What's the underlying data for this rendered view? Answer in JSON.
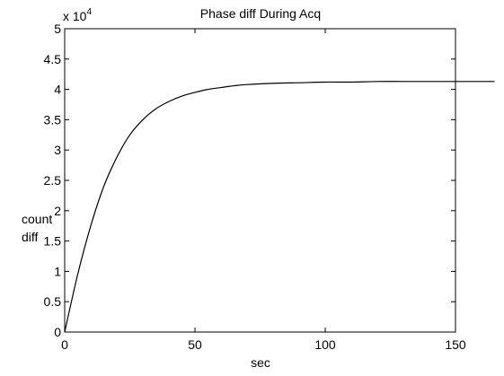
{
  "chart_data": {
    "type": "line",
    "title": "Phase diff During Acq",
    "xlabel": "sec",
    "ylabel_lines": [
      "count",
      "diff"
    ],
    "xlim": [
      0,
      150
    ],
    "ylim": [
      0,
      5
    ],
    "y_scale_prefix": "x 10",
    "y_scale_exponent": "4",
    "x_ticks": [
      0,
      50,
      100,
      150
    ],
    "x_tick_labels": [
      "0",
      "50",
      "100",
      "150"
    ],
    "y_ticks": [
      0,
      0.5,
      1,
      1.5,
      2,
      2.5,
      3,
      3.5,
      4,
      4.5,
      5
    ],
    "y_tick_labels": [
      "0",
      "0.5",
      "1",
      "1.5",
      "2",
      "2.5",
      "3",
      "3.5",
      "4",
      "4.5",
      "5"
    ],
    "grid": false,
    "series": [
      {
        "x": [
          0,
          5,
          10,
          15,
          20,
          25,
          30,
          35,
          40,
          45,
          50,
          55,
          60,
          65,
          70,
          80,
          90,
          100,
          110,
          120,
          130,
          140,
          150,
          165
        ],
        "values": [
          0,
          0.95,
          1.75,
          2.4,
          2.88,
          3.25,
          3.5,
          3.68,
          3.8,
          3.89,
          3.95,
          4.0,
          4.03,
          4.06,
          4.08,
          4.1,
          4.11,
          4.12,
          4.12,
          4.13,
          4.13,
          4.13,
          4.13,
          4.13
        ],
        "color": "#000000"
      }
    ]
  }
}
